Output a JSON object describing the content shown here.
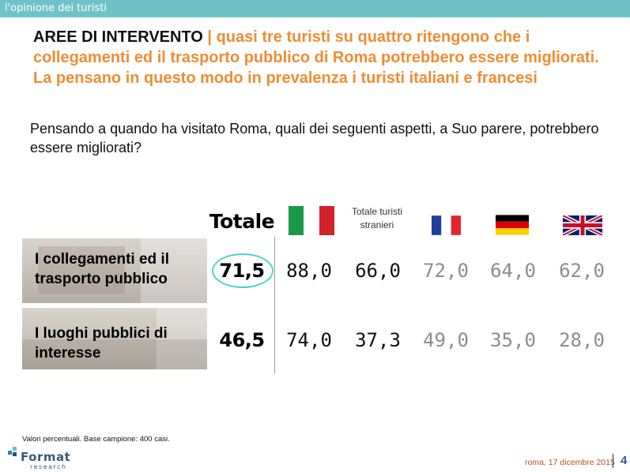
{
  "header": {
    "section_title": "l'opinione dei turisti"
  },
  "headline": {
    "lead": "AREE DI INTERVENTO",
    "rest": " | quasi tre turisti su quattro ritengono che i collegamenti ed il trasporto pubblico di Roma potrebbero essere migliorati. La pensano in questo modo in prevalenza i turisti italiani e francesi"
  },
  "question": "Pensando a quando ha visitato Roma, quali dei seguenti aspetti, a Suo parere, potrebbero essere migliorati?",
  "table": {
    "columns": {
      "totale": "Totale",
      "stranieri": "Totale turisti stranieri",
      "flag_icons": [
        "italy-flag-icon",
        "france-flag-icon",
        "germany-flag-icon",
        "uk-flag-icon"
      ]
    },
    "rows": [
      {
        "label": "I collegamenti ed il trasporto pubblico",
        "totale": "71,5",
        "italia": "88,0",
        "stranieri": "66,0",
        "francia": "72,0",
        "germania": "64,0",
        "uk": "62,0"
      },
      {
        "label": "I luoghi pubblici di interesse",
        "totale": "46,5",
        "italia": "74,0",
        "stranieri": "37,3",
        "francia": "49,0",
        "germania": "35,0",
        "uk": "28,0"
      }
    ]
  },
  "footnote": "Valori percentuali. Base campione: 400 casi.",
  "logo": {
    "name": "Format",
    "sub": "research"
  },
  "footer": {
    "date": "roma, 17 dicembre 2015",
    "page": "4"
  },
  "colors": {
    "header_bar": "#6fc3c8",
    "headline_orange": "#f08c32",
    "highlight_ellipse": "#4fd4c8",
    "page_number": "#2f5597"
  }
}
